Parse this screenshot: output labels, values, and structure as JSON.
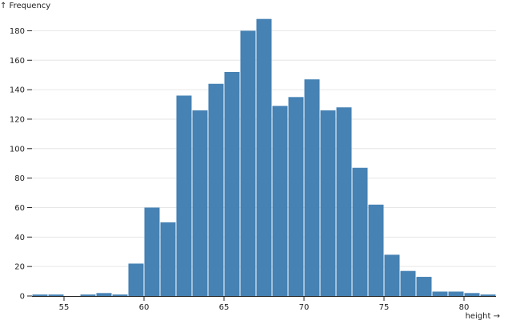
{
  "chart_data": {
    "type": "bar",
    "xlabel": "height →",
    "ylabel": "↑ Frequency",
    "bar_color": "#4682b4",
    "grid": "horizontal",
    "xlim": [
      53,
      82
    ],
    "ylim": [
      0,
      190
    ],
    "x_ticks": [
      55,
      60,
      65,
      70,
      75,
      80
    ],
    "y_ticks": [
      0,
      20,
      40,
      60,
      80,
      100,
      120,
      140,
      160,
      180
    ],
    "bins": [
      {
        "x0": 53,
        "x1": 54,
        "value": 1
      },
      {
        "x0": 54,
        "x1": 55,
        "value": 1
      },
      {
        "x0": 55,
        "x1": 56,
        "value": 0
      },
      {
        "x0": 56,
        "x1": 57,
        "value": 1
      },
      {
        "x0": 57,
        "x1": 58,
        "value": 2
      },
      {
        "x0": 58,
        "x1": 59,
        "value": 1
      },
      {
        "x0": 59,
        "x1": 60,
        "value": 22
      },
      {
        "x0": 60,
        "x1": 61,
        "value": 60
      },
      {
        "x0": 61,
        "x1": 62,
        "value": 50
      },
      {
        "x0": 62,
        "x1": 63,
        "value": 136
      },
      {
        "x0": 63,
        "x1": 64,
        "value": 126
      },
      {
        "x0": 64,
        "x1": 65,
        "value": 144
      },
      {
        "x0": 65,
        "x1": 66,
        "value": 152
      },
      {
        "x0": 66,
        "x1": 67,
        "value": 180
      },
      {
        "x0": 67,
        "x1": 68,
        "value": 188
      },
      {
        "x0": 68,
        "x1": 69,
        "value": 129
      },
      {
        "x0": 69,
        "x1": 70,
        "value": 135
      },
      {
        "x0": 70,
        "x1": 71,
        "value": 147
      },
      {
        "x0": 71,
        "x1": 72,
        "value": 126
      },
      {
        "x0": 72,
        "x1": 73,
        "value": 128
      },
      {
        "x0": 73,
        "x1": 74,
        "value": 87
      },
      {
        "x0": 74,
        "x1": 75,
        "value": 62
      },
      {
        "x0": 75,
        "x1": 76,
        "value": 28
      },
      {
        "x0": 76,
        "x1": 77,
        "value": 17
      },
      {
        "x0": 77,
        "x1": 78,
        "value": 13
      },
      {
        "x0": 78,
        "x1": 79,
        "value": 3
      },
      {
        "x0": 79,
        "x1": 80,
        "value": 3
      },
      {
        "x0": 80,
        "x1": 81,
        "value": 2
      },
      {
        "x0": 81,
        "x1": 82,
        "value": 1
      }
    ]
  }
}
